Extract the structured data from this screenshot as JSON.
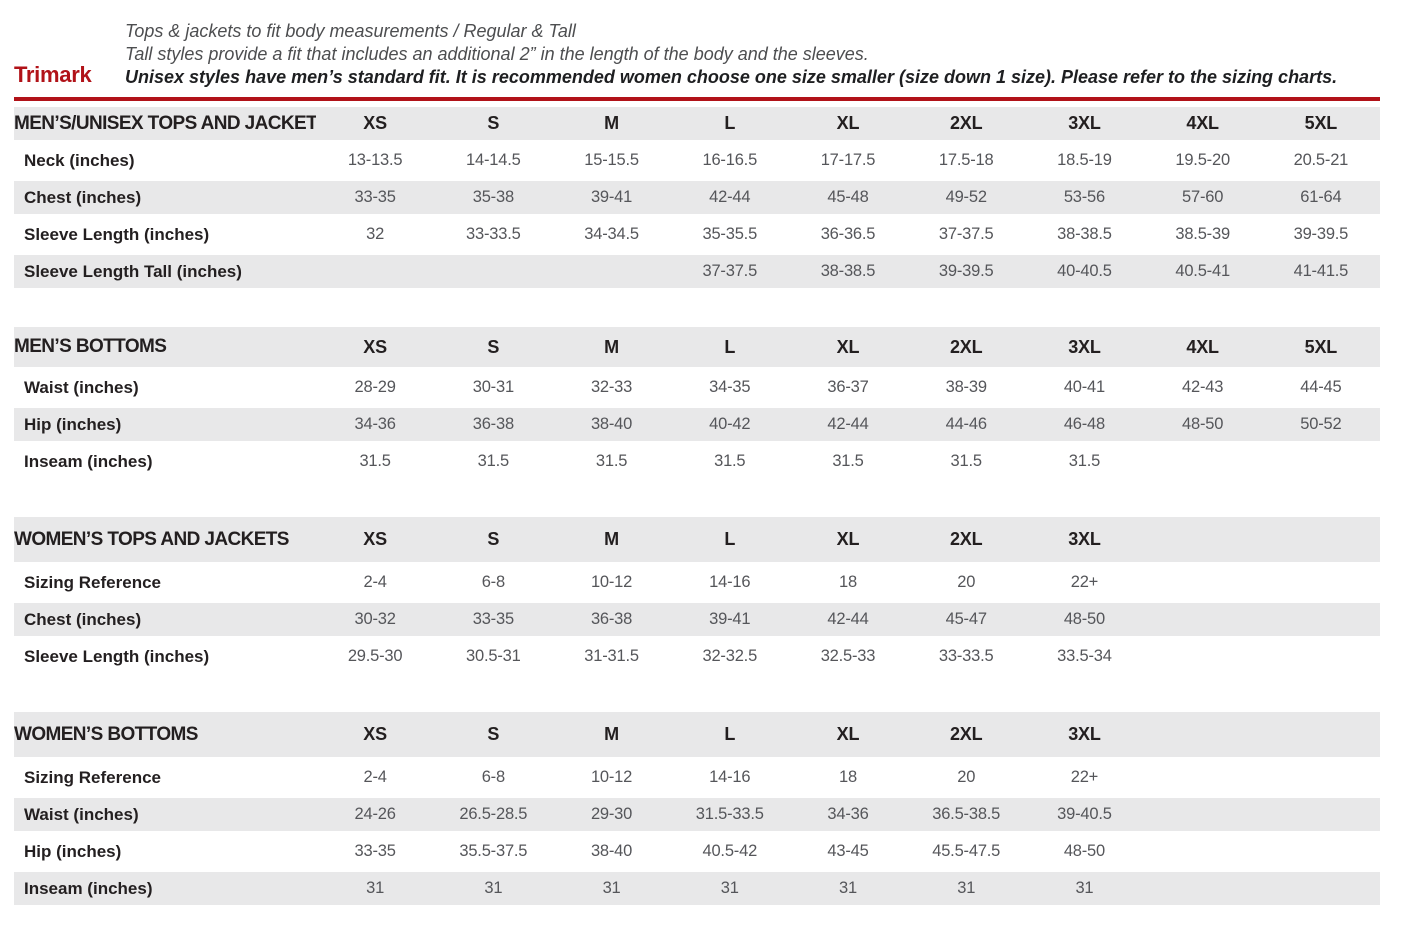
{
  "brand": "Trimark",
  "intro": {
    "line1": "Tops & jackets to fit body measurements / Regular & Tall",
    "line2": "Tall styles provide a fit that includes an additional 2” in the length of the body and the sleeves.",
    "line3": "Unisex styles have men’s standard fit. It is recommended women choose one size smaller (size down 1 size).  Please refer to the sizing charts."
  },
  "colors": {
    "accent_red": "#b11218",
    "row_gray": "#e8e8e9",
    "label_text": "#231f20",
    "value_text": "#55565a"
  },
  "tables": [
    {
      "title": "MEN’S/UNISEX TOPS AND JACKETS",
      "columns": [
        "XS",
        "S",
        "M",
        "L",
        "XL",
        "2XL",
        "3XL",
        "4XL",
        "5XL"
      ],
      "rows": [
        {
          "label": "Neck (inches)",
          "values": [
            "13-13.5",
            "14-14.5",
            "15-15.5",
            "16-16.5",
            "17-17.5",
            "17.5-18",
            "18.5-19",
            "19.5-20",
            "20.5-21"
          ]
        },
        {
          "label": "Chest (inches)",
          "values": [
            "33-35",
            "35-38",
            "39-41",
            "42-44",
            "45-48",
            "49-52",
            "53-56",
            "57-60",
            "61-64"
          ]
        },
        {
          "label": "Sleeve Length (inches)",
          "values": [
            "32",
            "33-33.5",
            "34-34.5",
            "35-35.5",
            "36-36.5",
            "37-37.5",
            "38-38.5",
            "38.5-39",
            "39-39.5"
          ]
        },
        {
          "label": "Sleeve Length Tall (inches)",
          "values": [
            "",
            "",
            "",
            "37-37.5",
            "38-38.5",
            "39-39.5",
            "40-40.5",
            "40.5-41",
            "41-41.5"
          ]
        }
      ]
    },
    {
      "title": "MEN’S BOTTOMS",
      "columns": [
        "XS",
        "S",
        "M",
        "L",
        "XL",
        "2XL",
        "3XL",
        "4XL",
        "5XL"
      ],
      "rows": [
        {
          "label": "Waist (inches)",
          "values": [
            "28-29",
            "30-31",
            "32-33",
            "34-35",
            "36-37",
            "38-39",
            "40-41",
            "42-43",
            "44-45"
          ]
        },
        {
          "label": "Hip (inches)",
          "values": [
            "34-36",
            "36-38",
            "38-40",
            "40-42",
            "42-44",
            "44-46",
            "46-48",
            "48-50",
            "50-52"
          ]
        },
        {
          "label": "Inseam (inches)",
          "values": [
            "31.5",
            "31.5",
            "31.5",
            "31.5",
            "31.5",
            "31.5",
            "31.5",
            "",
            ""
          ]
        }
      ]
    },
    {
      "title": "WOMEN’S TOPS AND JACKETS",
      "columns": [
        "XS",
        "S",
        "M",
        "L",
        "XL",
        "2XL",
        "3XL",
        "",
        ""
      ],
      "rows": [
        {
          "label": "Sizing Reference",
          "values": [
            "2-4",
            "6-8",
            "10-12",
            "14-16",
            "18",
            "20",
            "22+",
            "",
            ""
          ]
        },
        {
          "label": "Chest (inches)",
          "values": [
            "30-32",
            "33-35",
            "36-38",
            "39-41",
            "42-44",
            "45-47",
            "48-50",
            "",
            ""
          ]
        },
        {
          "label": "Sleeve Length (inches)",
          "values": [
            "29.5-30",
            "30.5-31",
            "31-31.5",
            "32-32.5",
            "32.5-33",
            "33-33.5",
            "33.5-34",
            "",
            ""
          ]
        }
      ]
    },
    {
      "title": "WOMEN’S BOTTOMS",
      "columns": [
        "XS",
        "S",
        "M",
        "L",
        "XL",
        "2XL",
        "3XL",
        "",
        ""
      ],
      "rows": [
        {
          "label": "Sizing Reference",
          "values": [
            "2-4",
            "6-8",
            "10-12",
            "14-16",
            "18",
            "20",
            "22+",
            "",
            ""
          ]
        },
        {
          "label": "Waist (inches)",
          "values": [
            "24-26",
            "26.5-28.5",
            "29-30",
            "31.5-33.5",
            "34-36",
            "36.5-38.5",
            "39-40.5",
            "",
            ""
          ]
        },
        {
          "label": "Hip (inches)",
          "values": [
            "33-35",
            "35.5-37.5",
            "38-40",
            "40.5-42",
            "43-45",
            "45.5-47.5",
            "48-50",
            "",
            ""
          ]
        },
        {
          "label": "Inseam (inches)",
          "values": [
            "31",
            "31",
            "31",
            "31",
            "31",
            "31",
            "31",
            "",
            ""
          ]
        }
      ]
    }
  ]
}
